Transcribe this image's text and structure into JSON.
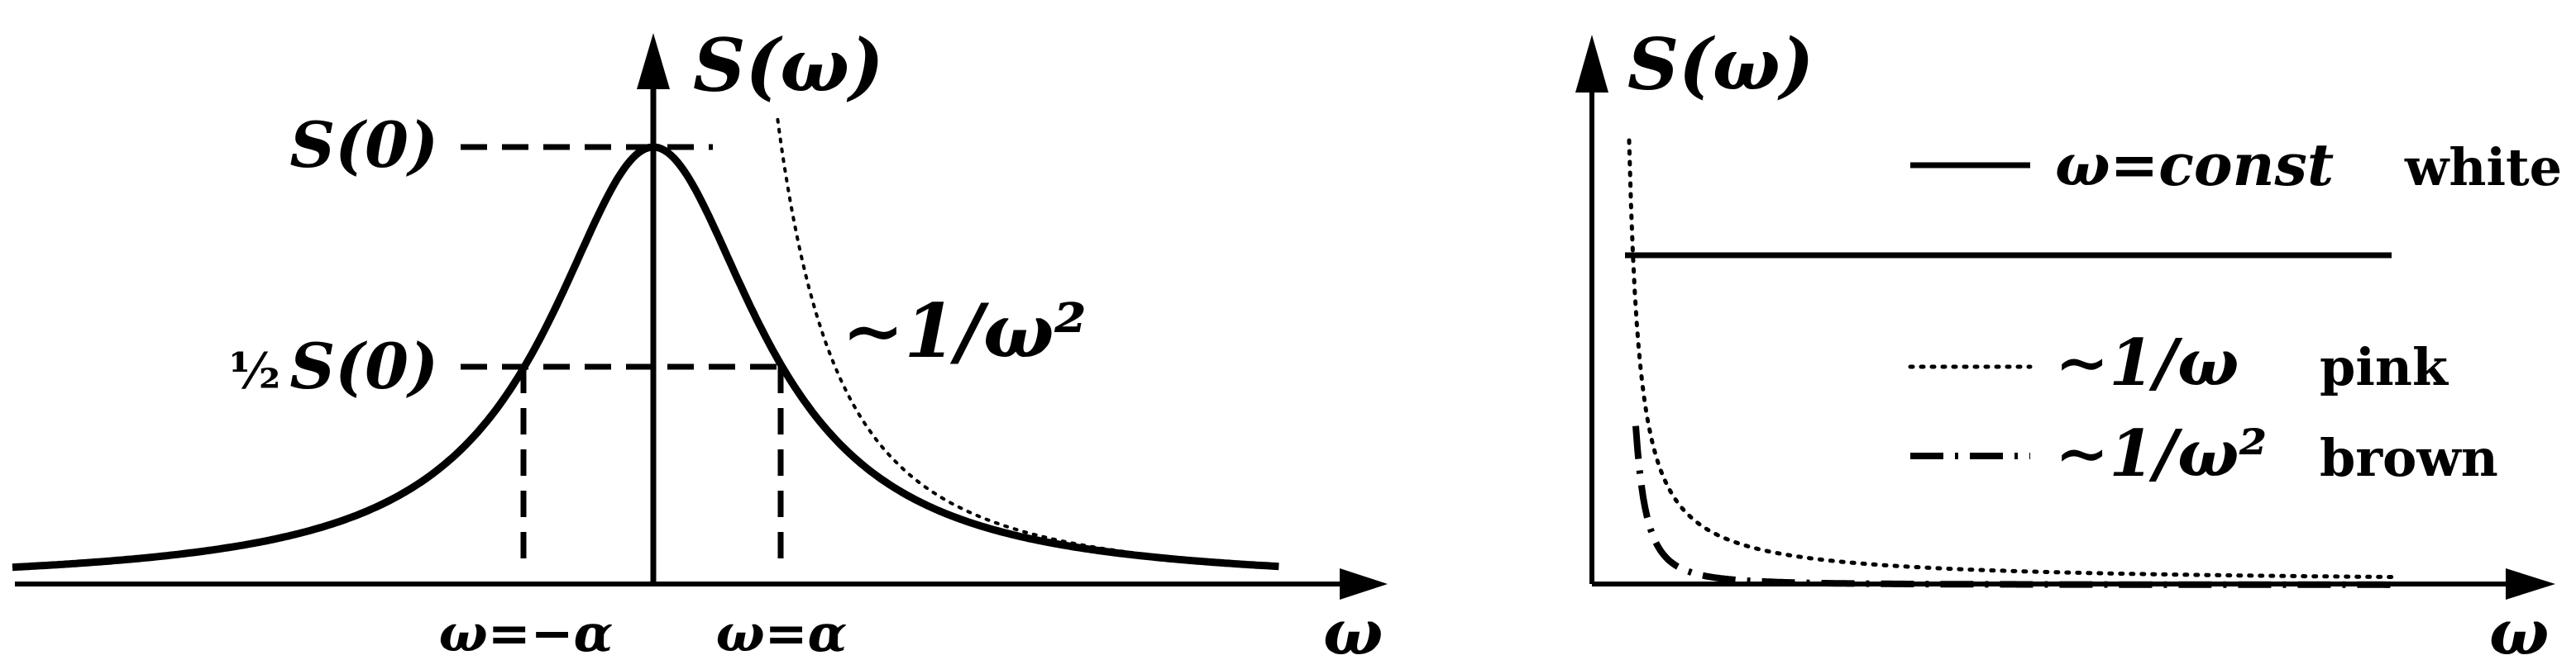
{
  "chart_data": [
    {
      "type": "line",
      "title": "",
      "ylabel": "S(ω)",
      "xlabel": "ω",
      "xlim": [
        -5,
        4.88
      ],
      "ylim": [
        0,
        1.22
      ],
      "alpha": 1,
      "peak_label": "S(0)",
      "half_label_fraction": "½",
      "half_label": "S(0)",
      "xtick_labels": [
        "ω=−α",
        "ω=α"
      ],
      "series": [
        {
          "style": "solid",
          "formula": "1/(1+ω²)",
          "x_range": [
            -5,
            4.88
          ]
        },
        {
          "name": "∼1/ω²",
          "style": "dotted",
          "formula": "1/ω²",
          "x_range": [
            0.97,
            4.88
          ]
        }
      ],
      "guides": [
        {
          "style": "dashed",
          "y": 1
        },
        {
          "style": "dashed",
          "y": 0.5
        },
        {
          "style": "dashed",
          "x": -1
        },
        {
          "style": "dashed",
          "x": 1
        }
      ]
    },
    {
      "type": "line",
      "title": "",
      "ylabel": "S(ω)",
      "xlabel": "ω",
      "series": [
        {
          "name": "ω=const",
          "kind": "white",
          "style": "solid",
          "formula": "const"
        },
        {
          "name": "∼1/ω",
          "kind": "pink",
          "style": "dotted",
          "formula": "1/ω"
        },
        {
          "name": "∼1/ω²",
          "kind": "brown",
          "style": "dashdot",
          "formula": "1/ω²"
        }
      ],
      "legend": "right"
    }
  ]
}
